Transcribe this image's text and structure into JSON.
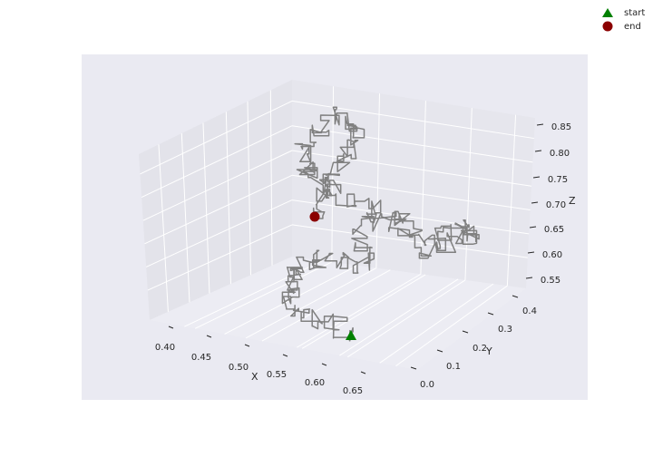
{
  "chart_data": {
    "type": "line3d",
    "title": "",
    "xlabel": "X",
    "ylabel": "Y",
    "zlabel": "Z",
    "x_ticks": [
      "0.40",
      "0.45",
      "0.50",
      "0.55",
      "0.60",
      "0.65"
    ],
    "y_ticks": [
      "0.0",
      "0.1",
      "0.2",
      "0.3",
      "0.4"
    ],
    "z_ticks": [
      "0.55",
      "0.60",
      "0.65",
      "0.70",
      "0.75",
      "0.80",
      "0.85"
    ],
    "legend": [
      {
        "label": "start",
        "marker": "triangle",
        "color": "#008000"
      },
      {
        "label": "end",
        "marker": "circle",
        "color": "#8b0000"
      }
    ],
    "legend_position": "top-right",
    "path_color": "#808080",
    "background_color": "#eaeaf2",
    "grid": true,
    "start": {
      "x": 0.645,
      "y": 0.1,
      "z": 0.55
    },
    "end": {
      "x": 0.5,
      "y": 0.15,
      "z": 0.69
    }
  }
}
